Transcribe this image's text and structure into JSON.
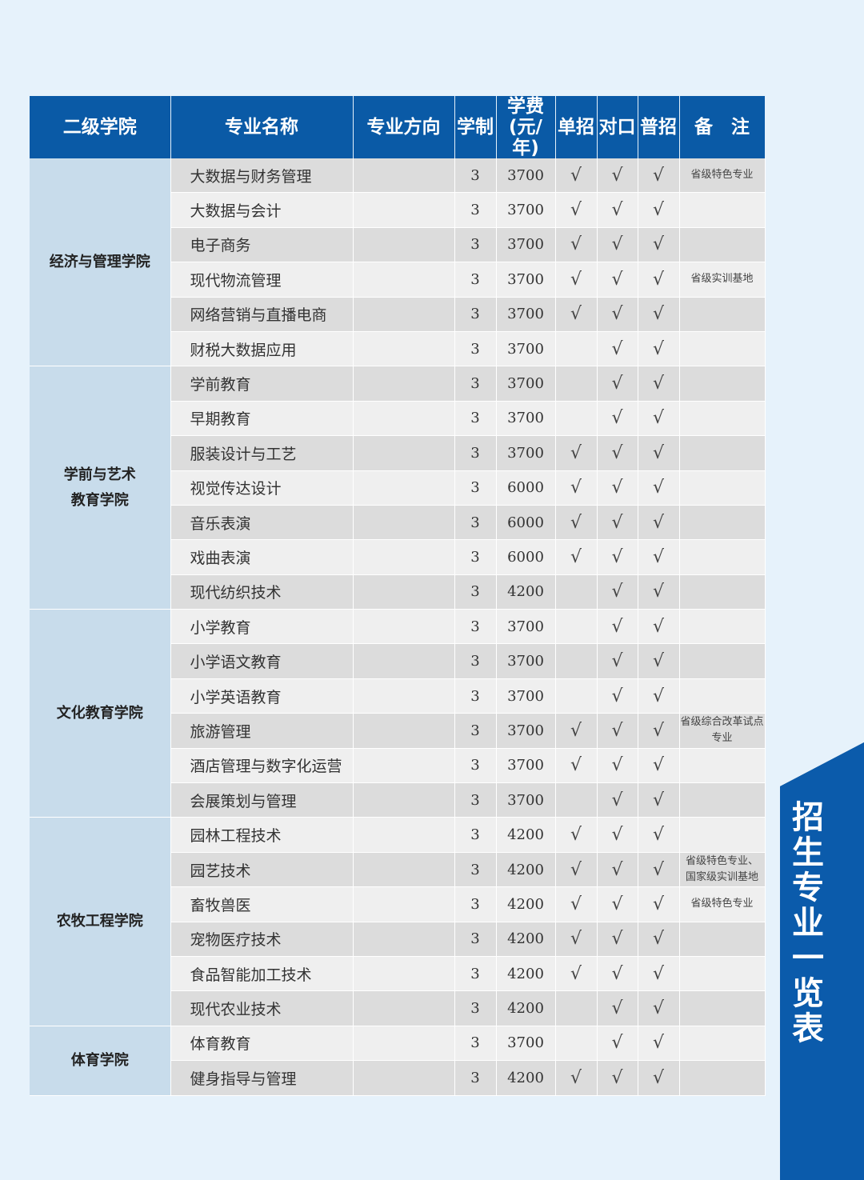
{
  "headers": [
    "二级学院",
    "专业名称",
    "专业方向",
    "学制",
    "学费\n(元/年)",
    "单招",
    "对口",
    "普招",
    "备　注"
  ],
  "check_mark": "√",
  "colors": {
    "header": "#0a5aa6",
    "college_cell": "#c8dceb",
    "banner": "#0b5bab"
  },
  "colleges": [
    {
      "name": "经济与管理学院",
      "majors": [
        {
          "name": "大数据与财务管理",
          "years": "3",
          "fee": "3700",
          "dan": true,
          "dui": true,
          "pu": true,
          "note": "省级特色专业"
        },
        {
          "name": "大数据与会计",
          "years": "3",
          "fee": "3700",
          "dan": true,
          "dui": true,
          "pu": true,
          "note": ""
        },
        {
          "name": "电子商务",
          "years": "3",
          "fee": "3700",
          "dan": true,
          "dui": true,
          "pu": true,
          "note": ""
        },
        {
          "name": "现代物流管理",
          "years": "3",
          "fee": "3700",
          "dan": true,
          "dui": true,
          "pu": true,
          "note": "省级实训基地"
        },
        {
          "name": "网络营销与直播电商",
          "years": "3",
          "fee": "3700",
          "dan": true,
          "dui": true,
          "pu": true,
          "note": ""
        },
        {
          "name": "财税大数据应用",
          "years": "3",
          "fee": "3700",
          "dan": false,
          "dui": true,
          "pu": true,
          "note": ""
        }
      ]
    },
    {
      "name": "学前与艺术\n教育学院",
      "majors": [
        {
          "name": "学前教育",
          "years": "3",
          "fee": "3700",
          "dan": false,
          "dui": true,
          "pu": true,
          "note": ""
        },
        {
          "name": "早期教育",
          "years": "3",
          "fee": "3700",
          "dan": false,
          "dui": true,
          "pu": true,
          "note": ""
        },
        {
          "name": "服装设计与工艺",
          "years": "3",
          "fee": "3700",
          "dan": true,
          "dui": true,
          "pu": true,
          "note": ""
        },
        {
          "name": "视觉传达设计",
          "years": "3",
          "fee": "6000",
          "dan": true,
          "dui": true,
          "pu": true,
          "note": ""
        },
        {
          "name": "音乐表演",
          "years": "3",
          "fee": "6000",
          "dan": true,
          "dui": true,
          "pu": true,
          "note": ""
        },
        {
          "name": "戏曲表演",
          "years": "3",
          "fee": "6000",
          "dan": true,
          "dui": true,
          "pu": true,
          "note": ""
        },
        {
          "name": "现代纺织技术",
          "years": "3",
          "fee": "4200",
          "dan": false,
          "dui": true,
          "pu": true,
          "note": ""
        }
      ]
    },
    {
      "name": "文化教育学院",
      "majors": [
        {
          "name": "小学教育",
          "years": "3",
          "fee": "3700",
          "dan": false,
          "dui": true,
          "pu": true,
          "note": ""
        },
        {
          "name": "小学语文教育",
          "years": "3",
          "fee": "3700",
          "dan": false,
          "dui": true,
          "pu": true,
          "note": ""
        },
        {
          "name": "小学英语教育",
          "years": "3",
          "fee": "3700",
          "dan": false,
          "dui": true,
          "pu": true,
          "note": ""
        },
        {
          "name": "旅游管理",
          "years": "3",
          "fee": "3700",
          "dan": true,
          "dui": true,
          "pu": true,
          "note": "省级综合改革试点专业"
        },
        {
          "name": "酒店管理与数字化运营",
          "years": "3",
          "fee": "3700",
          "dan": true,
          "dui": true,
          "pu": true,
          "note": ""
        },
        {
          "name": "会展策划与管理",
          "years": "3",
          "fee": "3700",
          "dan": false,
          "dui": true,
          "pu": true,
          "note": ""
        }
      ]
    },
    {
      "name": "农牧工程学院",
      "majors": [
        {
          "name": "园林工程技术",
          "years": "3",
          "fee": "4200",
          "dan": true,
          "dui": true,
          "pu": true,
          "note": ""
        },
        {
          "name": "园艺技术",
          "years": "3",
          "fee": "4200",
          "dan": true,
          "dui": true,
          "pu": true,
          "note": "省级特色专业、\n国家级实训基地"
        },
        {
          "name": "畜牧兽医",
          "years": "3",
          "fee": "4200",
          "dan": true,
          "dui": true,
          "pu": true,
          "note": "省级特色专业"
        },
        {
          "name": "宠物医疗技术",
          "years": "3",
          "fee": "4200",
          "dan": true,
          "dui": true,
          "pu": true,
          "note": ""
        },
        {
          "name": "食品智能加工技术",
          "years": "3",
          "fee": "4200",
          "dan": true,
          "dui": true,
          "pu": true,
          "note": ""
        },
        {
          "name": "现代农业技术",
          "years": "3",
          "fee": "4200",
          "dan": false,
          "dui": true,
          "pu": true,
          "note": ""
        }
      ]
    },
    {
      "name": "体育学院",
      "majors": [
        {
          "name": "体育教育",
          "years": "3",
          "fee": "3700",
          "dan": false,
          "dui": true,
          "pu": true,
          "note": ""
        },
        {
          "name": "健身指导与管理",
          "years": "3",
          "fee": "4200",
          "dan": true,
          "dui": true,
          "pu": true,
          "note": ""
        }
      ]
    }
  ],
  "banner_title": "招生专业一览表"
}
